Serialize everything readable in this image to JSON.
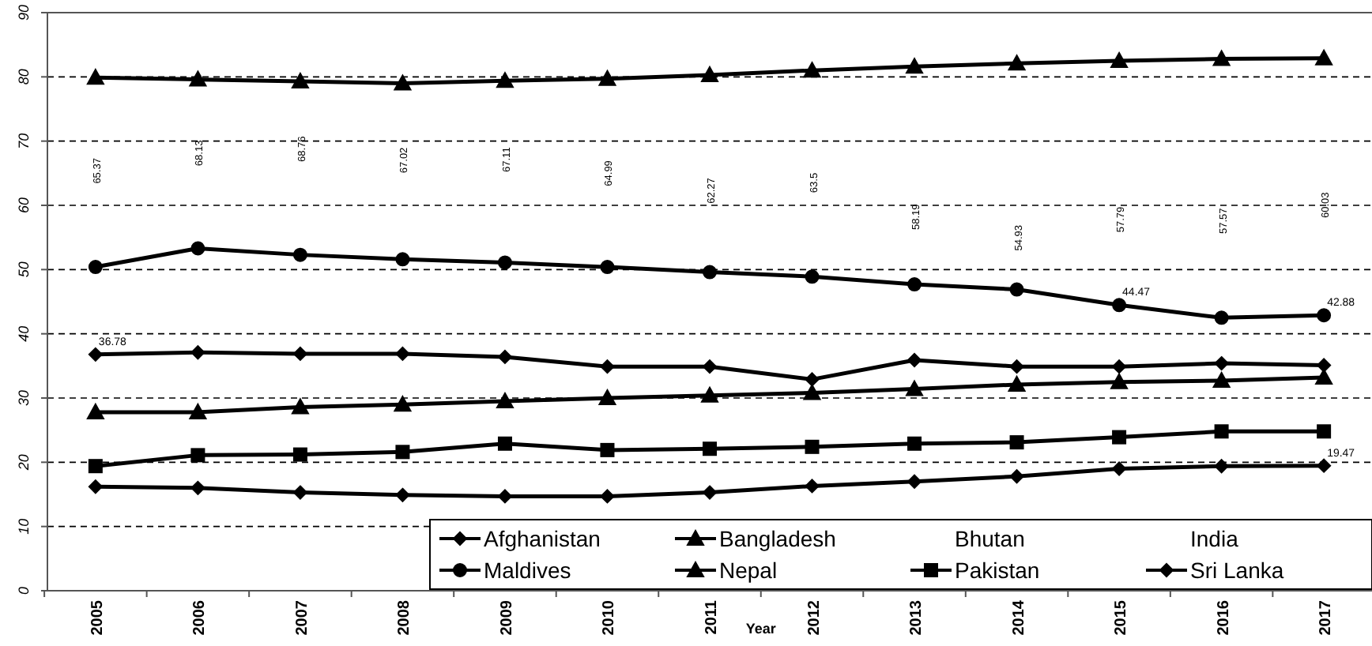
{
  "chart_data": {
    "type": "line",
    "xlabel": "Year",
    "categories": [
      "2005",
      "2006",
      "2007",
      "2008",
      "2009",
      "2010",
      "2011",
      "2012",
      "2013",
      "2014",
      "2015",
      "2016",
      "2017"
    ],
    "ylim": [
      0,
      90
    ],
    "yticks": [
      0,
      10,
      20,
      30,
      40,
      50,
      60,
      70,
      80,
      90
    ],
    "grid": "y",
    "legend": "bottom right",
    "line_style": "solid",
    "series": [
      {
        "name": "Afghanistan",
        "color": "#000000",
        "marker": "diamond",
        "values": [
          36.78,
          37.1,
          36.9,
          36.9,
          36.4,
          34.9,
          34.9,
          32.9,
          35.9,
          34.9,
          34.9,
          35.4,
          35.1
        ],
        "value_labels": [
          "36.78",
          null,
          null,
          null,
          null,
          null,
          null,
          null,
          null,
          null,
          null,
          null,
          null
        ]
      },
      {
        "name": "Bangladesh",
        "color": "#000000",
        "marker": "triangle",
        "values": [
          27.8,
          27.8,
          28.6,
          29.0,
          29.5,
          30.0,
          30.4,
          30.8,
          31.4,
          32.1,
          32.5,
          32.7,
          33.2
        ]
      },
      {
        "name": "Bhutan",
        "values": [
          null,
          null,
          null,
          null,
          null,
          null,
          null,
          null,
          null,
          null,
          null,
          null,
          null
        ]
      },
      {
        "name": "India",
        "values": [
          null,
          null,
          null,
          null,
          null,
          null,
          null,
          null,
          null,
          null,
          null,
          null,
          null
        ]
      },
      {
        "name": "Maldives",
        "color": "#000000",
        "marker": "circle",
        "values": [
          50.4,
          53.3,
          52.3,
          51.6,
          51.1,
          50.4,
          49.6,
          48.9,
          47.7,
          46.9,
          44.47,
          42.5,
          42.88
        ],
        "value_labels": [
          null,
          null,
          null,
          null,
          null,
          null,
          null,
          null,
          null,
          null,
          "44.47",
          null,
          "42.88"
        ]
      },
      {
        "name": "Nepal",
        "color": "#000000",
        "marker": "triangle",
        "values": [
          79.9,
          79.6,
          79.3,
          79.0,
          79.4,
          79.7,
          80.3,
          81.0,
          81.6,
          82.1,
          82.5,
          82.8,
          82.9
        ]
      },
      {
        "name": "Pakistan",
        "color": "#000000",
        "marker": "square",
        "values": [
          19.4,
          21.1,
          21.2,
          21.6,
          22.9,
          21.9,
          22.1,
          22.4,
          22.9,
          23.1,
          23.9,
          24.8,
          24.8
        ]
      },
      {
        "name": "Sri Lanka",
        "color": "#000000",
        "marker": "diamond",
        "values": [
          16.2,
          16.0,
          15.3,
          14.9,
          14.7,
          14.7,
          15.3,
          16.3,
          17.0,
          17.8,
          19.0,
          19.4,
          19.47
        ],
        "value_labels": [
          null,
          null,
          null,
          null,
          null,
          null,
          null,
          null,
          null,
          null,
          null,
          null,
          "19.47"
        ]
      }
    ],
    "annotations": [
      "65.37",
      "68.13",
      "68.76",
      "67.02",
      "67.11",
      "64.99",
      "62.27",
      "63.5",
      "58.19",
      "54.93",
      "57.79",
      "57.57",
      "60.03"
    ]
  }
}
